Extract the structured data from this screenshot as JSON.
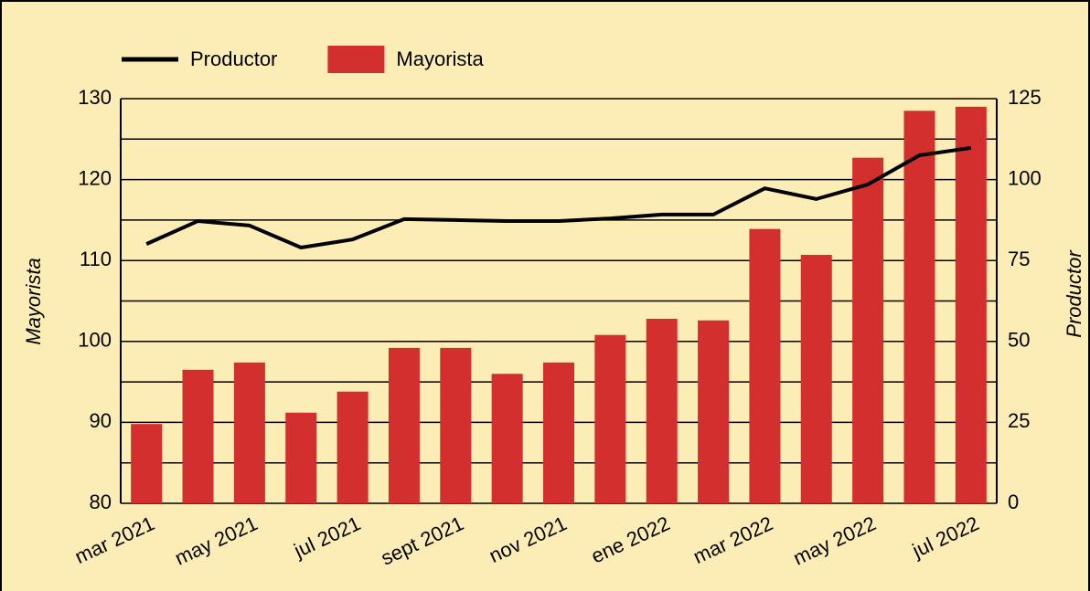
{
  "chart_data": {
    "type": "bar_line",
    "categories": [
      "mar 2021",
      null,
      "may 2021",
      null,
      "jul 2021",
      null,
      "sept 2021",
      null,
      "nov 2021",
      null,
      "ene 2022",
      null,
      "mar 2022",
      null,
      "may 2022",
      null,
      "jul 2022"
    ],
    "series": [
      {
        "name": "Productor",
        "type": "line",
        "axis": "y2",
        "color": "#000000",
        "values": [
          80.1,
          87.2,
          85.8,
          79.0,
          81.5,
          87.8,
          87.5,
          87.2,
          87.2,
          88.0,
          89.2,
          89.2,
          97.3,
          94.0,
          98.5,
          107.5,
          109.8
        ]
      },
      {
        "name": "Mayorista",
        "type": "bar",
        "axis": "y",
        "color": "#d32f2f",
        "values": [
          89.8,
          96.5,
          97.4,
          91.2,
          93.8,
          99.2,
          99.2,
          96.0,
          97.4,
          100.8,
          102.8,
          102.6,
          113.9,
          110.7,
          122.7,
          128.5,
          129.0
        ]
      }
    ],
    "ylabel": "Mayorista",
    "y2label": "Productor",
    "ylim": [
      80,
      130
    ],
    "yticks": [
      80,
      90,
      100,
      110,
      120,
      130
    ],
    "yminor": [
      85,
      95,
      105,
      115,
      125
    ],
    "y2lim": [
      0,
      125
    ],
    "y2ticks": [
      0,
      25,
      50,
      75,
      100,
      125
    ],
    "grid": true,
    "legend": "top-left"
  }
}
